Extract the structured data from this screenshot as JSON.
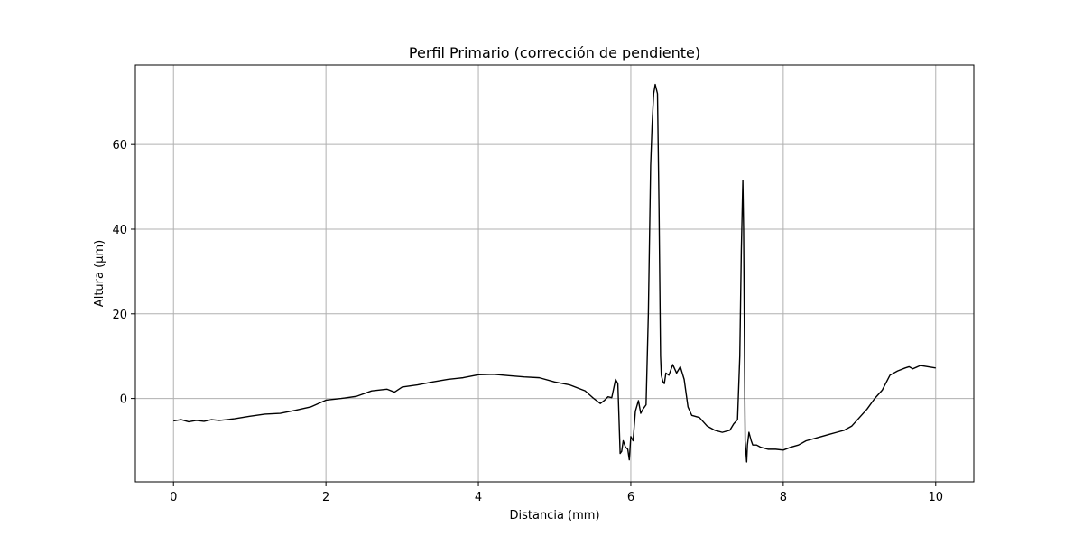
{
  "chart_data": {
    "type": "line",
    "title": "Perfil Primario (corrección de pendiente)",
    "xlabel": "Distancia (mm)",
    "ylabel": "Altura (µm)",
    "xlim": [
      -0.5,
      10.5
    ],
    "ylim": [
      -19.7,
      78.8
    ],
    "xticks": [
      0,
      2,
      4,
      6,
      8,
      10
    ],
    "xtick_labels": [
      "0",
      "2",
      "4",
      "6",
      "8",
      "10"
    ],
    "yticks": [
      0,
      20,
      40,
      60
    ],
    "ytick_labels": [
      "0",
      "20",
      "40",
      "60"
    ],
    "grid": true,
    "legend": "none",
    "colors": {
      "line": "#000000",
      "grid": "#b0b0b0",
      "axes": "#000000"
    },
    "series": [
      {
        "x": [
          0.0,
          0.1,
          0.2,
          0.3,
          0.4,
          0.5,
          0.6,
          0.8,
          1.0,
          1.2,
          1.4,
          1.6,
          1.8,
          2.0,
          2.2,
          2.4,
          2.6,
          2.8,
          2.9,
          3.0,
          3.2,
          3.4,
          3.6,
          3.8,
          4.0,
          4.2,
          4.4,
          4.6,
          4.8,
          5.0,
          5.2,
          5.4,
          5.5,
          5.6,
          5.65,
          5.7,
          5.75,
          5.8,
          5.83,
          5.86,
          5.88,
          5.9,
          5.93,
          5.96,
          5.98,
          6.0,
          6.03,
          6.06,
          6.1,
          6.13,
          6.16,
          6.2,
          6.23,
          6.26,
          6.28,
          6.3,
          6.32,
          6.35,
          6.37,
          6.39,
          6.4,
          6.42,
          6.44,
          6.46,
          6.5,
          6.55,
          6.6,
          6.65,
          6.7,
          6.75,
          6.8,
          6.9,
          7.0,
          7.1,
          7.2,
          7.3,
          7.35,
          7.4,
          7.43,
          7.45,
          7.47,
          7.48,
          7.5,
          7.52,
          7.53,
          7.55,
          7.58,
          7.6,
          7.65,
          7.7,
          7.8,
          7.9,
          8.0,
          8.1,
          8.2,
          8.3,
          8.4,
          8.5,
          8.6,
          8.7,
          8.8,
          8.9,
          9.0,
          9.1,
          9.2,
          9.3,
          9.4,
          9.5,
          9.6,
          9.65,
          9.7,
          9.8,
          9.9,
          10.0
        ],
        "y": [
          -5.3,
          -5.0,
          -5.5,
          -5.2,
          -5.4,
          -5.0,
          -5.2,
          -4.8,
          -4.2,
          -3.7,
          -3.5,
          -2.8,
          -2.0,
          -0.4,
          0.0,
          0.5,
          1.8,
          2.2,
          1.5,
          2.7,
          3.2,
          3.9,
          4.5,
          4.9,
          5.6,
          5.7,
          5.4,
          5.1,
          4.9,
          3.9,
          3.2,
          1.8,
          0.2,
          -1.2,
          -0.5,
          0.4,
          0.2,
          4.5,
          3.5,
          -13.0,
          -12.5,
          -10.0,
          -11.5,
          -12.0,
          -14.5,
          -9.0,
          -10.0,
          -3.0,
          -0.5,
          -3.5,
          -2.5,
          -1.5,
          20.0,
          55.0,
          65.0,
          72.0,
          74.2,
          72.0,
          45.0,
          10.0,
          5.5,
          4.0,
          3.5,
          6.0,
          5.5,
          8.0,
          6.0,
          7.5,
          4.5,
          -2.0,
          -4.0,
          -4.5,
          -6.5,
          -7.5,
          -8.0,
          -7.5,
          -6.0,
          -5.0,
          10.0,
          35.0,
          51.5,
          40.0,
          -10.0,
          -15.0,
          -11.0,
          -8.0,
          -10.0,
          -11.0,
          -11.0,
          -11.5,
          -12.0,
          -12.0,
          -12.2,
          -11.5,
          -11.0,
          -10.0,
          -9.5,
          -9.0,
          -8.5,
          -8.0,
          -7.5,
          -6.5,
          -4.5,
          -2.5,
          0.0,
          2.0,
          5.5,
          6.5,
          7.2,
          7.5,
          7.0,
          7.8,
          7.5,
          7.2
        ]
      }
    ]
  }
}
